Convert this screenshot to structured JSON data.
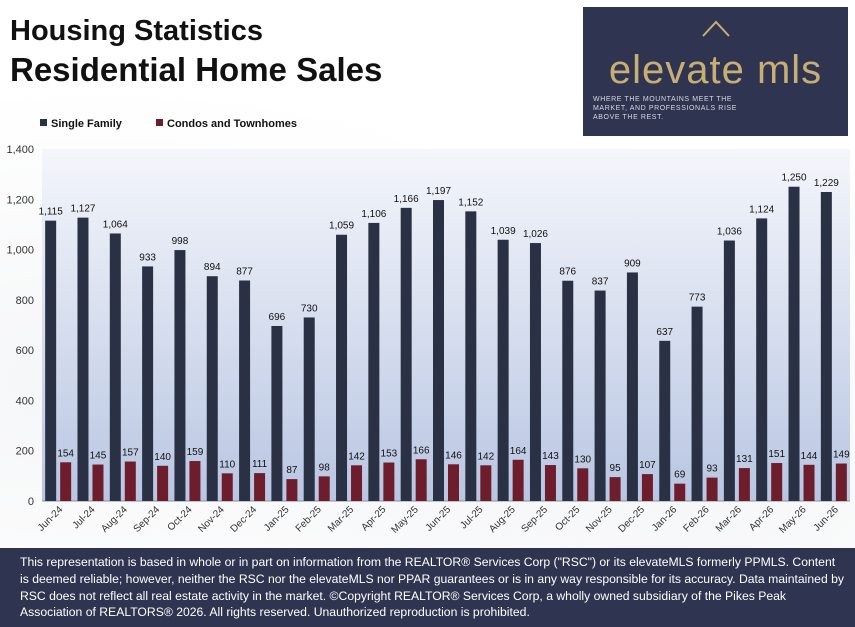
{
  "header": {
    "title_line1": "Housing Statistics",
    "title_line2": "Residential Home Sales"
  },
  "logo": {
    "wordmark": "elevate mls",
    "tagline": "WHERE THE MOUNTAINS MEET THE MARKET, AND PROFESSIONALS RISE ABOVE THE REST.",
    "icon": "mountain-chevron-icon"
  },
  "colors": {
    "single_family": "#2b3144",
    "condos": "#6e1d2c",
    "plot_bg_top": "#f4f6fb",
    "plot_bg_bottom": "#b9c6e2",
    "footer_bg": "#2f3550",
    "logo_gold": "#c8ae72"
  },
  "chart_data": {
    "type": "bar",
    "title": "Residential Home Sales",
    "categories": [
      "Jun-24",
      "Jul-24",
      "Aug-24",
      "Sep-24",
      "Oct-24",
      "Nov-24",
      "Dec-24",
      "Jan-25",
      "Feb-25",
      "Mar-25",
      "Apr-25",
      "May-25",
      "Jun-25",
      "Jul-25",
      "Aug-25",
      "Sep-25",
      "Oct-25",
      "Nov-25",
      "Dec-25",
      "Jan-26",
      "Feb-26",
      "Mar-26",
      "Apr-26",
      "May-26",
      "Jun-26"
    ],
    "series": [
      {
        "name": "Single Family",
        "values": [
          1115,
          1127,
          1064,
          933,
          998,
          894,
          877,
          696,
          730,
          1059,
          1106,
          1166,
          1197,
          1152,
          1039,
          1026,
          876,
          837,
          909,
          637,
          773,
          1036,
          1124,
          1250,
          1229
        ]
      },
      {
        "name": "Condos and Townhomes",
        "values": [
          154,
          145,
          157,
          140,
          159,
          110,
          111,
          87,
          98,
          142,
          153,
          166,
          146,
          142,
          164,
          143,
          130,
          95,
          107,
          69,
          93,
          131,
          151,
          144,
          149
        ]
      }
    ],
    "ylim": [
      0,
      1400
    ],
    "yticks": [
      "0",
      "200",
      "400",
      "600",
      "800",
      "1,000",
      "1,200",
      "1,400"
    ],
    "xlabel": "",
    "ylabel": "",
    "grid": false,
    "legend": "top-left",
    "data_labels": true
  },
  "footer": {
    "disclaimer": "This representation is based in whole or in part on information from the REALTOR® Services Corp (\"RSC\") or its elevateMLS formerly PPMLS. Content is deemed reliable; however, neither the RSC nor the elevateMLS nor PPAR guarantees or is in any way responsible for its accuracy. Data maintained by RSC does not reflect all real estate activity in the market. ©Copyright REALTOR® Services Corp, a wholly owned subsidiary of the Pikes Peak Association of REALTORS® 2026. All rights reserved. Unauthorized reproduction is prohibited."
  }
}
